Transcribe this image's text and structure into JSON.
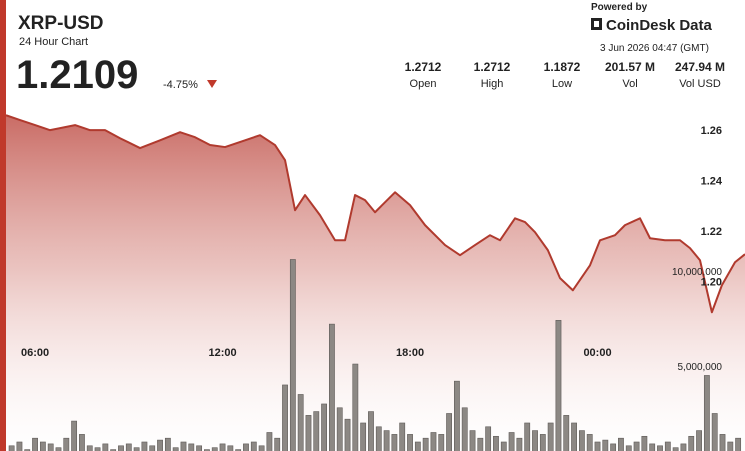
{
  "header": {
    "title": "XRP-USD",
    "subtitle": "24 Hour Chart",
    "price": "1.2109",
    "change": "-4.75%",
    "powered_by": "Powered by",
    "brand": "CoinDesk Data",
    "timestamp": "3 Jun 2026 04:47 (GMT)"
  },
  "stats": [
    {
      "value": "1.2712",
      "label": "Open"
    },
    {
      "value": "1.2712",
      "label": "High"
    },
    {
      "value": "1.1872",
      "label": "Low"
    },
    {
      "value": "201.57 M",
      "label": "Vol"
    },
    {
      "value": "247.94 M",
      "label": "Vol USD"
    }
  ],
  "chart_data": {
    "type": "line",
    "xlim": [
      5.07,
      28.72
    ],
    "xticks": [
      {
        "value": 6,
        "label": "06:00"
      },
      {
        "value": 12,
        "label": "12:00"
      },
      {
        "value": 18,
        "label": "18:00"
      },
      {
        "value": 24,
        "label": "00:00"
      }
    ],
    "ylim": [
      1.129,
      1.266
    ],
    "yticks": [
      {
        "value": 1.2,
        "label": "1.20"
      },
      1.22,
      1.24,
      1.26
    ],
    "y2lim": [
      0,
      18200000
    ],
    "y2ticks": [
      {
        "value": 5000000,
        "label": "5,000,000"
      },
      {
        "value": 10000000,
        "label": "10,000,000"
      }
    ],
    "grid": false,
    "series": [
      {
        "type": "line",
        "color": "#b03a2e",
        "x": [
          5.07,
          5.52,
          6.0,
          6.48,
          6.96,
          7.28,
          7.76,
          8.24,
          8.72,
          9.36,
          10.0,
          10.64,
          11.12,
          11.6,
          12.08,
          12.72,
          13.2,
          13.68,
          14.0,
          14.32,
          14.64,
          15.12,
          15.6,
          15.92,
          16.24,
          16.56,
          16.88,
          17.52,
          18.0,
          18.48,
          19.12,
          19.6,
          20.08,
          20.56,
          20.88,
          21.36,
          21.68,
          22.0,
          22.41,
          22.8,
          23.21,
          23.76,
          24.08,
          24.56,
          24.88,
          25.36,
          25.68,
          26.16,
          26.64,
          26.96,
          27.28,
          27.66,
          27.98,
          28.4,
          28.72
        ],
        "values": [
          1.2659,
          1.264,
          1.262,
          1.26,
          1.2612,
          1.262,
          1.26,
          1.26,
          1.2568,
          1.2529,
          1.256,
          1.2592,
          1.2572,
          1.2541,
          1.2533,
          1.256,
          1.258,
          1.2541,
          1.2481,
          1.2283,
          1.2343,
          1.2263,
          1.2164,
          1.2164,
          1.2343,
          1.2323,
          1.2275,
          1.2354,
          1.2303,
          1.2224,
          1.2145,
          1.2105,
          1.2145,
          1.2184,
          1.2164,
          1.2251,
          1.2236,
          1.2196,
          1.2125,
          1.2014,
          1.1966,
          1.2065,
          1.2164,
          1.2184,
          1.2224,
          1.2251,
          1.2172,
          1.2164,
          1.2164,
          1.2133,
          1.2085,
          1.1879,
          1.1986,
          1.2077,
          1.2109
        ]
      },
      {
        "type": "bar",
        "axis": "y2",
        "color": "#8c8884",
        "x": [
          5.25,
          5.5,
          5.75,
          6.0,
          6.25,
          6.5,
          6.75,
          7.0,
          7.25,
          7.5,
          7.75,
          8.0,
          8.25,
          8.5,
          8.75,
          9.0,
          9.25,
          9.5,
          9.75,
          10.0,
          10.25,
          10.5,
          10.75,
          11.0,
          11.25,
          11.5,
          11.75,
          12.0,
          12.25,
          12.5,
          12.75,
          13.0,
          13.25,
          13.5,
          13.75,
          14.0,
          14.25,
          14.5,
          14.75,
          15.0,
          15.25,
          15.5,
          15.75,
          16.0,
          16.25,
          16.5,
          16.75,
          17.0,
          17.25,
          17.5,
          17.75,
          18.0,
          18.25,
          18.5,
          18.75,
          19.0,
          19.25,
          19.5,
          19.75,
          20.0,
          20.25,
          20.5,
          20.75,
          21.0,
          21.25,
          21.5,
          21.75,
          22.0,
          22.25,
          22.5,
          22.75,
          23.0,
          23.25,
          23.5,
          23.75,
          24.0,
          24.25,
          24.5,
          24.75,
          25.0,
          25.25,
          25.5,
          25.75,
          26.0,
          26.25,
          26.5,
          26.75,
          27.0,
          27.25,
          27.5,
          27.75,
          28.0,
          28.25,
          28.5
        ],
        "values": [
          800000,
          1000000,
          600000,
          1200000,
          1000000,
          900000,
          700000,
          1200000,
          2100000,
          1400000,
          800000,
          700000,
          900000,
          600000,
          800000,
          900000,
          700000,
          1000000,
          800000,
          1100000,
          1200000,
          700000,
          1000000,
          900000,
          800000,
          600000,
          700000,
          900000,
          800000,
          600000,
          900000,
          1000000,
          800000,
          1500000,
          1200000,
          4000000,
          10600000,
          3500000,
          2400000,
          2600000,
          3000000,
          7200000,
          2800000,
          2200000,
          5100000,
          2000000,
          2600000,
          1800000,
          1600000,
          1400000,
          2000000,
          1400000,
          1000000,
          1200000,
          1500000,
          1400000,
          2500000,
          4200000,
          2800000,
          1600000,
          1200000,
          1800000,
          1300000,
          1000000,
          1500000,
          1200000,
          2000000,
          1600000,
          1400000,
          2000000,
          7400000,
          2400000,
          2000000,
          1600000,
          1400000,
          1000000,
          1100000,
          900000,
          1200000,
          800000,
          1000000,
          1300000,
          900000,
          800000,
          1000000,
          700000,
          900000,
          1300000,
          1600000,
          4500000,
          2500000,
          1400000,
          1000000,
          1200000
        ]
      }
    ]
  }
}
